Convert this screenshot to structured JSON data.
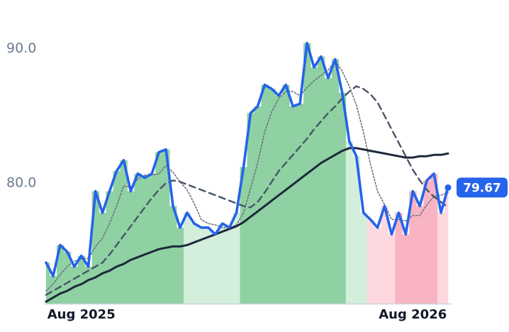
{
  "chart_data": {
    "type": "line",
    "categories": [
      null,
      null,
      null,
      null,
      null,
      "Aug 2025",
      null,
      null,
      null,
      null,
      null,
      null,
      null,
      null,
      null,
      null,
      null,
      null,
      null,
      null,
      null,
      null,
      null,
      null,
      null,
      null,
      null,
      null,
      null,
      null,
      null,
      null,
      null,
      null,
      null,
      null,
      null,
      null,
      null,
      null,
      null,
      null,
      null,
      null,
      null,
      null,
      null,
      null,
      null,
      null,
      null,
      null,
      "Aug 2026",
      null,
      null,
      null,
      null,
      null
    ],
    "ylim": [
      71,
      93.6
    ],
    "yticks": [
      {
        "value": 80,
        "label": "80.0"
      },
      {
        "value": 90,
        "label": "90.0"
      }
    ],
    "series": [
      {
        "color": "#2563eb",
        "style": "solid",
        "values": [
          74.1,
          73.1,
          75.4,
          74.9,
          73.8,
          74.6,
          73.8,
          79.4,
          77.8,
          79.4,
          80.9,
          81.7,
          79.4,
          80.7,
          80.4,
          80.7,
          82.3,
          82.5,
          78.3,
          76.7,
          77.8,
          77.0,
          76.7,
          76.7,
          76.2,
          77.0,
          76.7,
          77.8,
          81.2,
          85.2,
          85.7,
          87.3,
          87.0,
          86.5,
          87.3,
          85.7,
          85.9,
          90.4,
          88.6,
          89.4,
          87.8,
          89.2,
          86.7,
          83.1,
          82.0,
          77.8,
          77.3,
          76.7,
          78.3,
          76.2,
          77.8,
          76.2,
          79.4,
          78.3,
          80.2,
          80.7,
          77.8,
          79.67
        ],
        "value_labels": [
          null,
          null,
          null,
          null,
          null,
          null,
          null,
          null,
          null,
          null,
          null,
          null,
          null,
          null,
          null,
          null,
          null,
          null,
          null,
          null,
          null,
          null,
          null,
          null,
          null,
          null,
          null,
          null,
          null,
          null,
          null,
          null,
          null,
          null,
          null,
          null,
          null,
          null,
          null,
          null,
          null,
          null,
          null,
          null,
          null,
          null,
          null,
          null,
          null,
          null,
          null,
          null,
          null,
          null,
          null,
          null,
          null,
          "79.67"
        ],
        "fill_colors": [
          "#8fd1a2",
          "#8fd1a2",
          "#8fd1a2",
          "#8fd1a2",
          "#8fd1a2",
          "#8fd1a2",
          "#8fd1a2",
          "#8fd1a2",
          "#8fd1a2",
          "#8fd1a2",
          "#8fd1a2",
          "#8fd1a2",
          "#8fd1a2",
          "#8fd1a2",
          "#8fd1a2",
          "#8fd1a2",
          "#8fd1a2",
          "#8fd1a2",
          "#8fd1a2",
          "#8fd1a2",
          "#d3eedb",
          "#d3eedb",
          "#d3eedb",
          "#d3eedb",
          "#d3eedb",
          "#d3eedb",
          "#d3eedb",
          "#d3eedb",
          "#8fd1a2",
          "#8fd1a2",
          "#8fd1a2",
          "#8fd1a2",
          "#8fd1a2",
          "#8fd1a2",
          "#8fd1a2",
          "#8fd1a2",
          "#8fd1a2",
          "#8fd1a2",
          "#8fd1a2",
          "#8fd1a2",
          "#8fd1a2",
          "#8fd1a2",
          "#8fd1a2",
          "#d3eedb",
          "#d3eedb",
          "#d3eedb",
          "#fdd9df",
          "#fdd9df",
          "#fdd9df",
          "#fdd9df",
          "#f8b4c3",
          "#f8b4c3",
          "#f8b4c3",
          "#f8b4c3",
          "#f8b4c3",
          "#f8b4c3",
          "#fdd9df",
          "#fdd9df"
        ]
      },
      {
        "color": "#6b7280",
        "style": "dotted",
        "values": [
          72.0,
          72.5,
          73.2,
          73.8,
          74.2,
          74.4,
          74.4,
          75.3,
          75.9,
          77.0,
          78.3,
          79.8,
          79.7,
          80.3,
          80.6,
          80.6,
          80.7,
          81.3,
          80.8,
          80.1,
          79.5,
          78.5,
          77.3,
          77.0,
          76.9,
          76.7,
          76.7,
          76.9,
          77.8,
          79.6,
          81.5,
          83.8,
          85.3,
          86.3,
          86.8,
          86.8,
          86.5,
          87.1,
          87.6,
          88.0,
          88.4,
          89.1,
          88.3,
          87.2,
          85.8,
          83.8,
          81.4,
          79.4,
          78.4,
          77.3,
          77.3,
          77.2,
          77.6,
          77.6,
          78.4,
          79.0,
          79.1,
          79.3
        ]
      },
      {
        "color": "#475569",
        "style": "dashed",
        "values": [
          71.7,
          72.0,
          72.3,
          72.6,
          72.9,
          73.2,
          73.5,
          73.8,
          74.1,
          74.7,
          75.4,
          76.1,
          76.8,
          77.5,
          78.2,
          78.9,
          79.5,
          80.0,
          80.2,
          80.1,
          79.9,
          79.7,
          79.5,
          79.3,
          79.1,
          78.9,
          78.7,
          78.5,
          78.3,
          78.2,
          78.6,
          79.3,
          80.1,
          80.9,
          81.5,
          82.1,
          82.7,
          83.3,
          84.0,
          84.6,
          85.2,
          85.7,
          86.3,
          86.8,
          87.2,
          87.0,
          86.6,
          86.0,
          85.0,
          84.0,
          83.0,
          82.0,
          81.0,
          80.2,
          79.5,
          79.0,
          78.6,
          78.2
        ]
      },
      {
        "color": "#1e293b",
        "style": "solid",
        "values": [
          71.2,
          71.5,
          71.8,
          72.0,
          72.3,
          72.5,
          72.8,
          73.0,
          73.3,
          73.5,
          73.8,
          74.0,
          74.3,
          74.5,
          74.7,
          74.9,
          75.1,
          75.2,
          75.3,
          75.3,
          75.4,
          75.6,
          75.8,
          76.0,
          76.2,
          76.4,
          76.6,
          76.8,
          77.1,
          77.5,
          77.9,
          78.3,
          78.7,
          79.1,
          79.5,
          79.9,
          80.3,
          80.7,
          81.1,
          81.5,
          81.8,
          82.1,
          82.4,
          82.6,
          82.6,
          82.5,
          82.4,
          82.3,
          82.2,
          82.1,
          82.0,
          81.9,
          81.9,
          82.0,
          82.0,
          82.1,
          82.1,
          82.2
        ]
      }
    ]
  }
}
